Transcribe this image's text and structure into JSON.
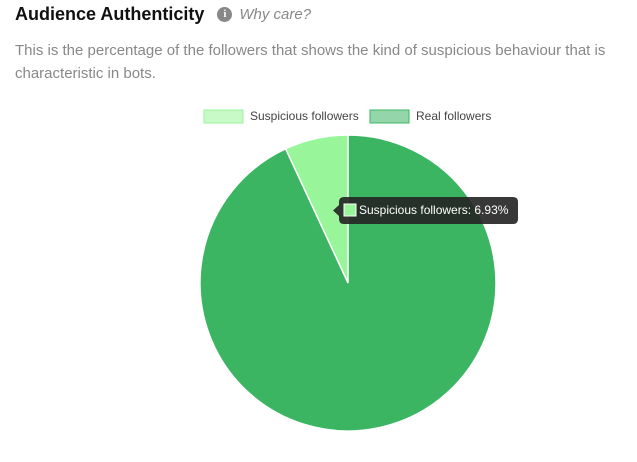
{
  "header": {
    "title": "Audience Authenticity",
    "help_link": "Why care?",
    "description": "This is the percentage of the followers that shows the kind of suspicious behaviour that is characteristic in bots."
  },
  "chart_data": {
    "type": "pie",
    "series": [
      {
        "name": "Suspicious followers",
        "color": "#99f599",
        "values": [
          6.93
        ]
      },
      {
        "name": "Real followers",
        "color": "#3cb563",
        "values": [
          93.07
        ]
      }
    ],
    "tooltip": "Suspicious followers: 6.93%"
  }
}
